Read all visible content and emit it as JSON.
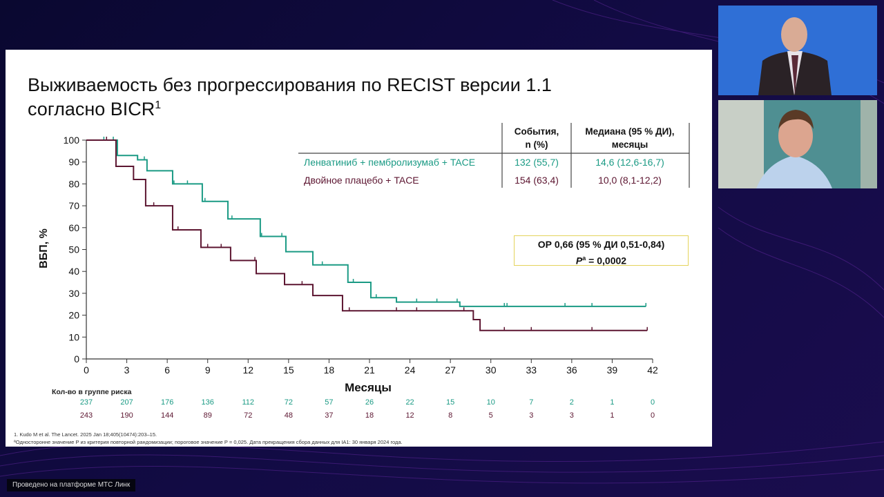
{
  "slide": {
    "title_line1": "Выживаемость без прогрессирования по RECIST версии 1.1",
    "title_line2": "согласно BICR",
    "title_sup": "1",
    "table": {
      "headers": [
        "События, n (%)",
        "Медиана (95 % ДИ), месяцы"
      ],
      "header_lines": [
        [
          "События,",
          "n (%)"
        ],
        [
          "Медиана (95 % ДИ),",
          "месяцы"
        ]
      ],
      "rows": [
        {
          "label": "Ленватиниб + пембролизумаб + TACE",
          "events": "132 (55,7)",
          "median": "14,6 (12,6-16,7)",
          "color": "#1a9a84"
        },
        {
          "label": "Двойное плацебо + TACE",
          "events": "154 (63,4)",
          "median": "10,0 (8,1-12,2)",
          "color": "#5c1530"
        }
      ]
    },
    "hr_line1": "ОР 0,66 (95 % ДИ 0,51-0,84)",
    "hr_p_label": "P",
    "hr_p_sup": "a",
    "hr_p_value": " = 0,0002",
    "risk_label": "Кол-во в группе риска",
    "risk_rows": [
      [
        "237",
        "207",
        "176",
        "136",
        "112",
        "72",
        "57",
        "26",
        "22",
        "15",
        "10",
        "7",
        "2",
        "1",
        "0"
      ],
      [
        "243",
        "190",
        "144",
        "89",
        "72",
        "48",
        "37",
        "18",
        "12",
        "8",
        "5",
        "3",
        "3",
        "1",
        "0"
      ]
    ],
    "footnote1": "1. Kudo M et al. The Lancet. 2025 Jan 18;405(10474):203–15.",
    "footnote2": "ªОдносторонне значение P из критерия повторной рандомизации; пороговое значение P = 0,025. Дата прекращения сбора данных для IA1: 30 января 2024 года."
  },
  "chart_data": {
    "type": "line",
    "title": "",
    "xlabel": "Месяцы",
    "ylabel": "ВБП, %",
    "xlim": [
      0,
      42
    ],
    "ylim": [
      0,
      100
    ],
    "xticks": [
      0,
      3,
      6,
      9,
      12,
      15,
      18,
      21,
      24,
      27,
      30,
      33,
      36,
      39,
      42
    ],
    "yticks": [
      0,
      10,
      20,
      30,
      40,
      50,
      60,
      70,
      80,
      90,
      100
    ],
    "grid": false,
    "step": true,
    "series": [
      {
        "name": "Ленватиниб + пембролизумаб + TACE",
        "color": "#1a9a84",
        "x": [
          0,
          1.8,
          2.3,
          3.3,
          3.8,
          4.5,
          6.0,
          6.4,
          8.1,
          8.6,
          10.1,
          10.5,
          12.4,
          12.9,
          14.4,
          14.8,
          16.5,
          16.8,
          18.7,
          19.4,
          20.6,
          21.1,
          23.0,
          27.7,
          41.5
        ],
        "y": [
          100,
          100,
          93,
          93,
          91,
          86,
          86,
          80,
          80,
          72,
          72,
          64,
          64,
          56,
          56,
          49,
          49,
          43,
          43,
          35,
          35,
          28,
          26,
          24,
          24
        ],
        "censored_x": [
          1.3,
          2.0,
          4.3,
          6.5,
          7.5,
          8.8,
          10.8,
          13.0,
          14.5,
          17.5,
          19.8,
          21.5,
          23.0,
          24.5,
          26.0,
          27.5,
          31.0,
          31.2,
          35.5,
          37.5,
          41.5
        ]
      },
      {
        "name": "Двойное плацебо + TACE",
        "color": "#5c1530",
        "x": [
          0,
          1.9,
          2.2,
          3.5,
          4.0,
          4.4,
          5.9,
          6.4,
          8.1,
          8.5,
          9.8,
          10.7,
          12.3,
          12.6,
          14.3,
          14.7,
          16.5,
          16.8,
          18.5,
          19.0,
          26.4,
          28.7,
          29.2,
          41.6
        ],
        "y": [
          100,
          100,
          88,
          82,
          82,
          70,
          70,
          59,
          59,
          51,
          51,
          45,
          45,
          39,
          39,
          34,
          34,
          29,
          29,
          22,
          22,
          18,
          13,
          13
        ],
        "censored_x": [
          1.5,
          5.0,
          6.8,
          9.0,
          10.0,
          12.5,
          16.0,
          19.5,
          23.0,
          24.5,
          28.0,
          31.0,
          33.0,
          37.5,
          41.6
        ]
      }
    ]
  },
  "platform_badge": "Проведено на платформе МТС Линк",
  "videos": [
    {
      "bg": "#2f6fd6"
    },
    {
      "bg": "#b9c7c0"
    }
  ]
}
